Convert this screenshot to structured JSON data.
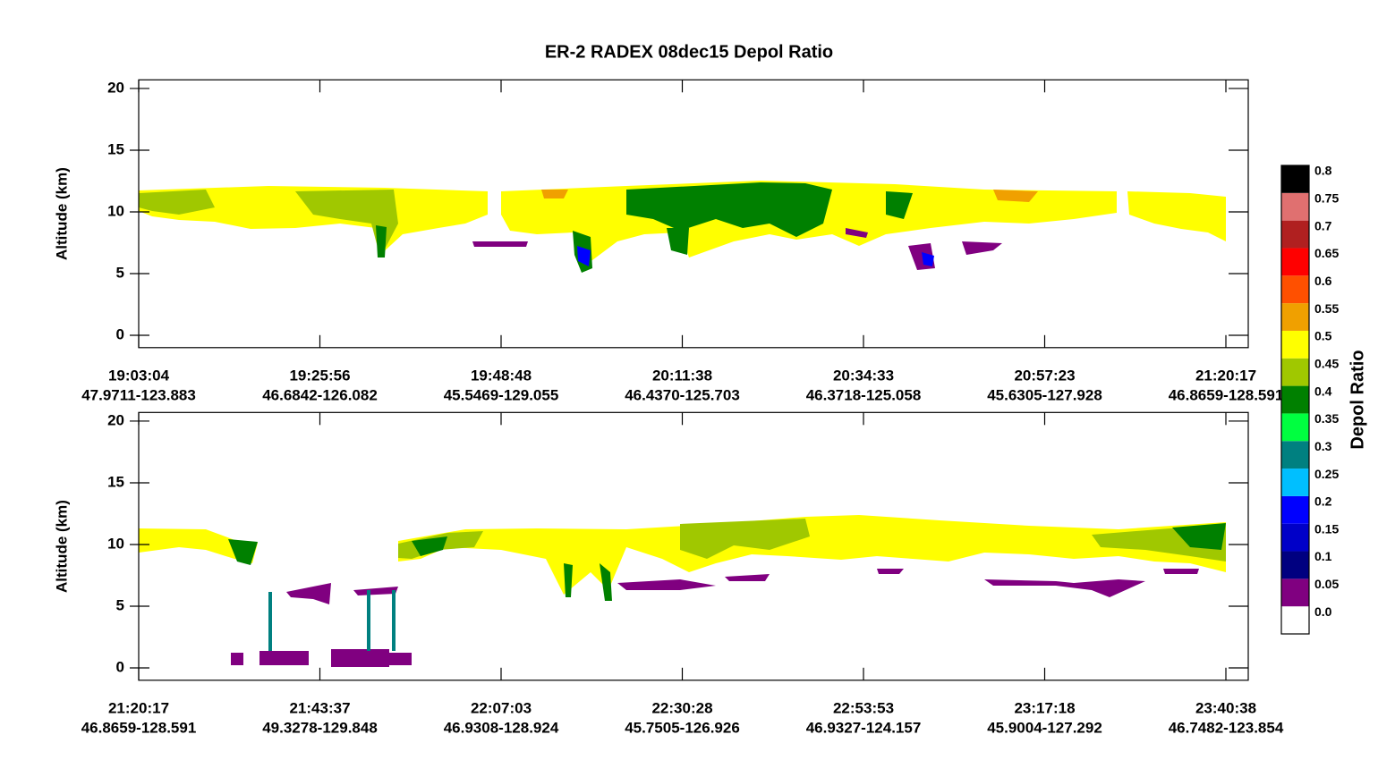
{
  "title": "ER-2 RADEX 08dec15 Depol Ratio",
  "chart_data": [
    {
      "type": "curtain",
      "ylabel": "Altitude (km)",
      "ylim": [
        -1,
        20.7
      ],
      "yticks": [
        0,
        5,
        10,
        15,
        20
      ],
      "x_time_labels": [
        "19:03:04",
        "19:25:56",
        "19:48:48",
        "20:11:38",
        "20:34:33",
        "20:57:23",
        "21:20:17"
      ],
      "x_location_labels": [
        "47.9711-123.883",
        "46.6842-126.082",
        "45.5469-129.055",
        "46.4370-125.703",
        "46.3718-125.058",
        "45.6305-127.928",
        "46.8659-128.591"
      ]
    },
    {
      "type": "curtain",
      "ylabel": "Altitude (km)",
      "ylim": [
        -1,
        20.7
      ],
      "yticks": [
        0,
        5,
        10,
        15,
        20
      ],
      "x_time_labels": [
        "21:20:17",
        "21:43:37",
        "22:07:03",
        "22:30:28",
        "22:53:53",
        "23:17:18",
        "23:40:38"
      ],
      "x_location_labels": [
        "46.8659-128.591",
        "49.3278-129.848",
        "46.9308-128.924",
        "45.7505-126.926",
        "46.9327-124.157",
        "45.9004-127.292",
        "46.7482-123.854"
      ]
    }
  ],
  "colorbar": {
    "label": "Depol Ratio",
    "levels": [
      {
        "value": 0,
        "label": "0.0"
      },
      0.05,
      0.1,
      0.15,
      0.2,
      0.25,
      0.3,
      0.35,
      0.4,
      0.45,
      0.5,
      0.55,
      0.6,
      0.65,
      0.7,
      0.75,
      0.8
    ],
    "colors": [
      "#ffffff",
      "#800080",
      "#000080",
      "#0000c8",
      "#0000ff",
      "#00bfff",
      "#008080",
      "#00ff40",
      "#008000",
      "#a0c800",
      "#ffff00",
      "#f0a000",
      "#ff5000",
      "#ff0000",
      "#b02020",
      "#e07070",
      "#000000"
    ]
  }
}
